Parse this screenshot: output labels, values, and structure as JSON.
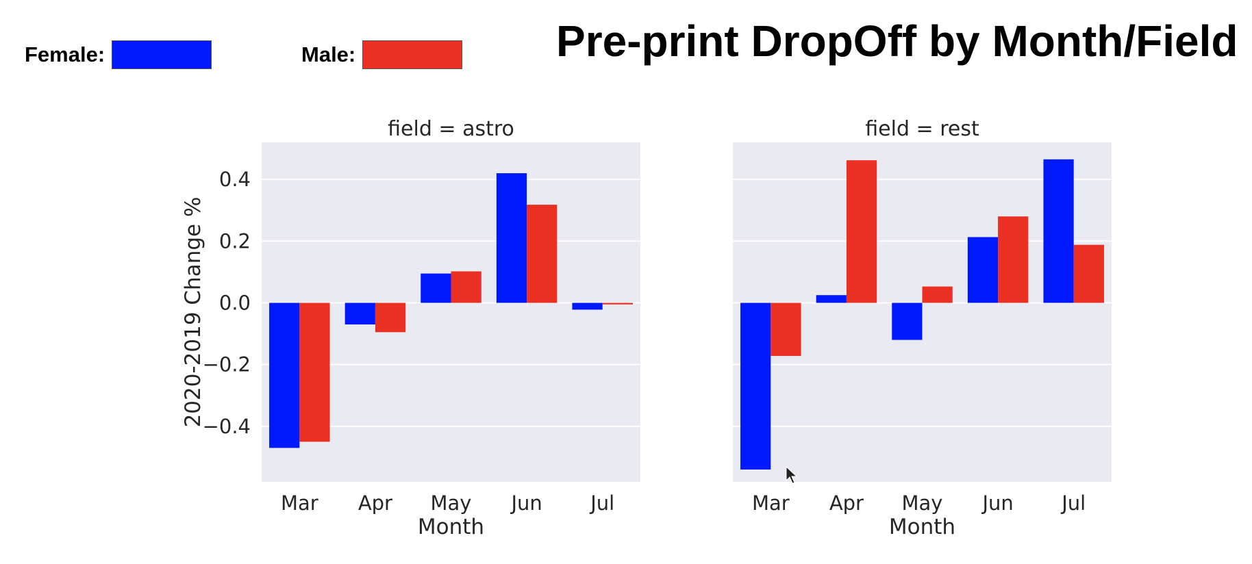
{
  "title": "Pre-print DropOff by Month/Field",
  "legend": {
    "female_label": "Female:",
    "male_label": "Male:",
    "female_color": "#0019FF",
    "male_color": "#EA2F23"
  },
  "chart_data": [
    {
      "type": "bar",
      "title": "field = astro",
      "categories": [
        "Mar",
        "Apr",
        "May",
        "Jun",
        "Jul"
      ],
      "series": [
        {
          "name": "Female",
          "values": [
            -0.47,
            -0.07,
            0.095,
            0.42,
            -0.022
          ]
        },
        {
          "name": "Male",
          "values": [
            -0.45,
            -0.095,
            0.102,
            0.318,
            -0.005
          ]
        }
      ],
      "xlabel": "Month",
      "ylabel": "2020-2019 Change %",
      "ylim": [
        -0.58,
        0.52
      ],
      "yticks": [
        0.4,
        0.2,
        0.0,
        -0.2,
        -0.4
      ],
      "ytick_labels": [
        "0.4",
        "0.2",
        "0.0",
        "−0.2",
        "−0.4"
      ],
      "grid": true
    },
    {
      "type": "bar",
      "title": "field = rest",
      "categories": [
        "Mar",
        "Apr",
        "May",
        "Jun",
        "Jul"
      ],
      "series": [
        {
          "name": "Female",
          "values": [
            -0.54,
            0.025,
            -0.12,
            0.213,
            0.465
          ]
        },
        {
          "name": "Male",
          "values": [
            -0.172,
            0.462,
            0.053,
            0.28,
            0.188
          ]
        }
      ],
      "xlabel": "Month",
      "ylabel": "",
      "ylim": [
        -0.58,
        0.52
      ],
      "yticks": [
        0.4,
        0.2,
        0.0,
        -0.2,
        -0.4
      ],
      "ytick_labels": [],
      "grid": true
    }
  ],
  "style": {
    "panel_background": "#EAEAF2",
    "grid_color": "#FFFFFF",
    "text_color": "#262626"
  }
}
